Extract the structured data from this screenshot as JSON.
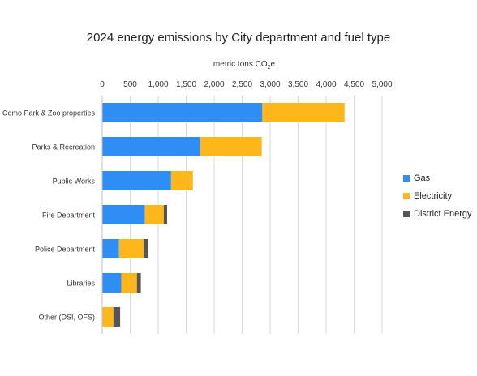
{
  "chart_data": {
    "type": "bar",
    "orientation": "horizontal",
    "stacked": true,
    "title": "2024 energy emissions by City department and fuel type",
    "xlabel_prefix": "metric tons CO",
    "xlabel_sub": "2",
    "xlabel_suffix": "e",
    "xlim": [
      0,
      5000
    ],
    "xticks": [
      "0",
      "500",
      "1,000",
      "1,500",
      "2,000",
      "2,500",
      "3,000",
      "3,500",
      "4,000",
      "4,500",
      "5,000"
    ],
    "xtick_values": [
      0,
      500,
      1000,
      1500,
      2000,
      2500,
      3000,
      3500,
      4000,
      4500,
      5000
    ],
    "grid": true,
    "legend_position": "right",
    "categories": [
      "Como Park & Zoo properties",
      "Parks & Recreation",
      "Public Works",
      "Fire Department",
      "Police Department",
      "Libraries",
      "Other (DSI, OFS)"
    ],
    "series": [
      {
        "name": "Gas",
        "color": "#2f8ef5",
        "values": [
          2860,
          1750,
          1230,
          760,
          300,
          340,
          0
        ]
      },
      {
        "name": "Electricity",
        "color": "#fdb71a",
        "values": [
          1470,
          1100,
          390,
          340,
          440,
          280,
          200
        ]
      },
      {
        "name": "District Energy",
        "color": "#555555",
        "values": [
          0,
          0,
          0,
          60,
          80,
          70,
          120
        ]
      }
    ]
  }
}
